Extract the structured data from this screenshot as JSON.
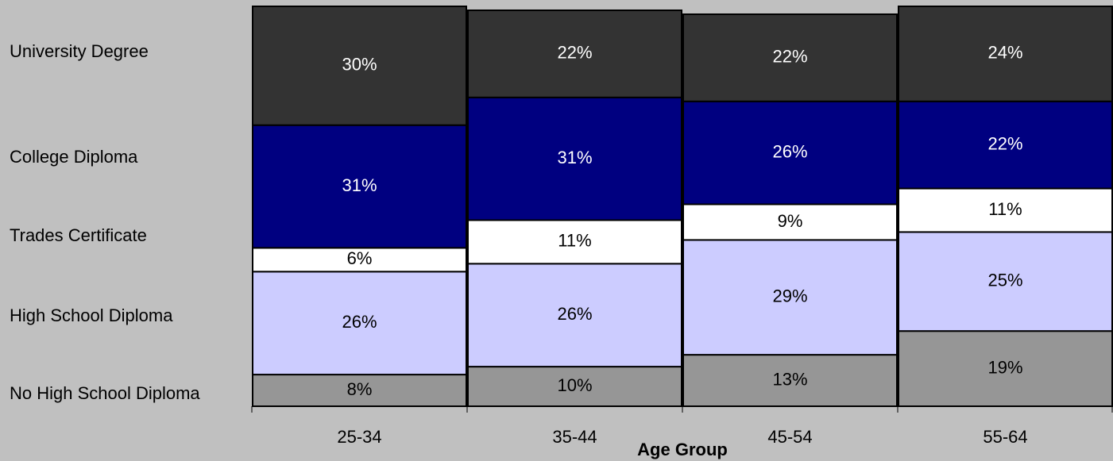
{
  "chart_data": {
    "type": "stacked_bar",
    "x_label": "Age Group",
    "categories": [
      "25-34",
      "35-44",
      "45-54",
      "55-64"
    ],
    "ylim": [
      0,
      101
    ],
    "series": [
      {
        "name": "No High School Diploma",
        "color": "#969696",
        "values": [
          8,
          10,
          13,
          19
        ],
        "value_labels": [
          "8%",
          "10%",
          "13%",
          "19%"
        ]
      },
      {
        "name": "High School Diploma",
        "color": "#ccccff",
        "values": [
          26,
          26,
          29,
          25
        ],
        "value_labels": [
          "26%",
          "26%",
          "29%",
          "25%"
        ]
      },
      {
        "name": "Trades Certificate",
        "color": "#ffffff",
        "values": [
          6,
          11,
          9,
          11
        ],
        "value_labels": [
          "6%",
          "11%",
          "9%",
          "11%"
        ]
      },
      {
        "name": "College Diploma",
        "color": "#000080",
        "values": [
          31,
          31,
          26,
          22
        ],
        "value_labels": [
          "31%",
          "31%",
          "26%",
          "22%"
        ]
      },
      {
        "name": "University Degree",
        "color": "#333333",
        "values": [
          30,
          22,
          22,
          24
        ],
        "value_labels": [
          "30%",
          "22%",
          "22%",
          "24%"
        ]
      }
    ]
  }
}
